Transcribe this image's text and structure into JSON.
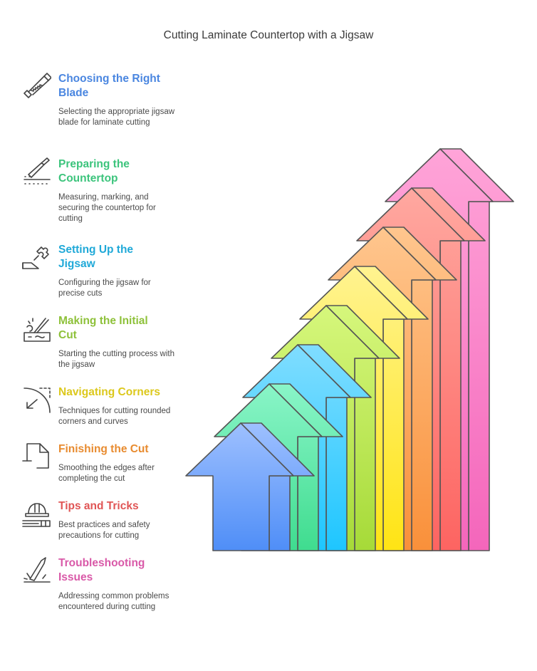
{
  "title": "Cutting Laminate Countertop with a Jigsaw",
  "steps": [
    {
      "heading": [
        "Choosing the Right",
        "Blade"
      ],
      "description": "Selecting the appropriate jigsaw blade for laminate cutting",
      "color": "#4a86e0",
      "icon": "saw-icon",
      "arrow_colors": [
        "#9ec0ff",
        "#4f8ef7"
      ]
    },
    {
      "heading": [
        "Preparing the",
        "Countertop"
      ],
      "description": "Measuring, marking, and securing the countertop for cutting",
      "color": "#3cc47c",
      "icon": "knife-icon",
      "arrow_colors": [
        "#8af5c8",
        "#3fdc8f"
      ]
    },
    {
      "heading": [
        "Setting Up the",
        "Jigsaw"
      ],
      "description": "Configuring the jigsaw for precise cuts",
      "color": "#20a9d8",
      "icon": "puzzle-icon",
      "arrow_colors": [
        "#80ddff",
        "#1ec6ff"
      ]
    },
    {
      "heading": [
        "Making the Initial",
        "Cut"
      ],
      "description": "Starting the cutting process with the jigsaw",
      "color": "#8ec13a",
      "icon": "cut-icon",
      "arrow_colors": [
        "#d6f77c",
        "#a6da38"
      ]
    },
    {
      "heading": [
        "Navigating Corners"
      ],
      "description": "Techniques for cutting rounded corners and curves",
      "color": "#dcc81c",
      "icon": "corner-icon",
      "arrow_colors": [
        "#fff390",
        "#ffe414"
      ]
    },
    {
      "heading": [
        "Finishing the Cut"
      ],
      "description": "Smoothing the edges after completing the cut",
      "color": "#e88b2f",
      "icon": "document-icon",
      "arrow_colors": [
        "#ffc68e",
        "#f9903a"
      ]
    },
    {
      "heading": [
        "Tips and Tricks"
      ],
      "description": "Best practices and safety precautions for cutting",
      "color": "#e05555",
      "icon": "hardhat-icon",
      "arrow_colors": [
        "#ffa8a0",
        "#fd6461"
      ]
    },
    {
      "heading": [
        "Troubleshooting",
        "Issues"
      ],
      "description": "Addressing common problems encountered during cutting",
      "color": "#d959a8",
      "icon": "blade-icon",
      "arrow_colors": [
        "#ffa4d8",
        "#f466bb"
      ]
    }
  ],
  "stroke_color": "#555555"
}
